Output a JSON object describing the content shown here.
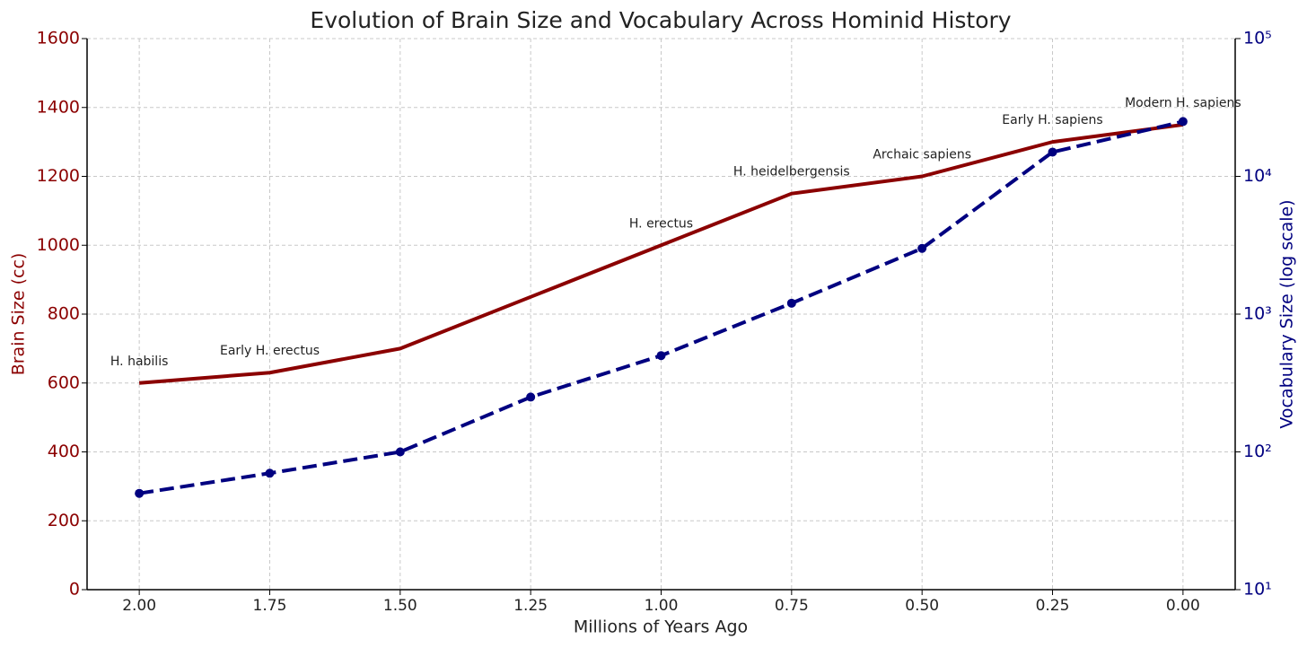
{
  "chart_data": {
    "type": "line",
    "title": "Evolution of Brain Size and Vocabulary Across Hominid History",
    "xlabel": "Millions of Years Ago",
    "ylabel": "Brain Size (cc)",
    "y2label": "Vocabulary Size (log scale)",
    "x": [
      2.0,
      1.75,
      1.5,
      1.25,
      1.0,
      0.75,
      0.5,
      0.25,
      0.0
    ],
    "xlim": [
      2.1,
      -0.1
    ],
    "xticks": [
      {
        "value": 2.0,
        "label": "2.00"
      },
      {
        "value": 1.75,
        "label": "1.75"
      },
      {
        "value": 1.5,
        "label": "1.50"
      },
      {
        "value": 1.25,
        "label": "1.25"
      },
      {
        "value": 1.0,
        "label": "1.00"
      },
      {
        "value": 0.75,
        "label": "0.75"
      },
      {
        "value": 0.5,
        "label": "0.50"
      },
      {
        "value": 0.25,
        "label": "0.25"
      },
      {
        "value": 0.0,
        "label": "0.00"
      }
    ],
    "ylim": [
      0,
      1600
    ],
    "yticks": [
      0,
      200,
      400,
      600,
      800,
      1000,
      1200,
      1400,
      1600
    ],
    "y2lim": [
      10,
      100000
    ],
    "y2scale": "log",
    "y2ticks": [
      {
        "value": 10,
        "label": "10¹"
      },
      {
        "value": 100,
        "label": "10²"
      },
      {
        "value": 1000,
        "label": "10³"
      },
      {
        "value": 10000,
        "label": "10⁴"
      },
      {
        "value": 100000,
        "label": "10⁵"
      }
    ],
    "ycolor": "#8b0000",
    "y2color": "#000080",
    "grid": true,
    "series": [
      {
        "name": "Brain Size (cc)",
        "color": "#8b0000",
        "linestyle": "solid",
        "marker": false,
        "values": [
          600,
          630,
          700,
          850,
          1000,
          1150,
          1200,
          1300,
          1350
        ]
      },
      {
        "name": "Vocabulary Size (log scale)",
        "color": "#000080",
        "linestyle": "dashed",
        "marker": true,
        "axis": "y2",
        "values": [
          50,
          70,
          100,
          250,
          500,
          1200,
          3000,
          15000,
          25000
        ]
      }
    ],
    "annotations": [
      "H. habilis",
      "Early H. erectus",
      null,
      null,
      "H. erectus",
      "H. heidelbergensis",
      "Archaic sapiens",
      "Early H. sapiens",
      "Modern H. sapiens"
    ]
  }
}
